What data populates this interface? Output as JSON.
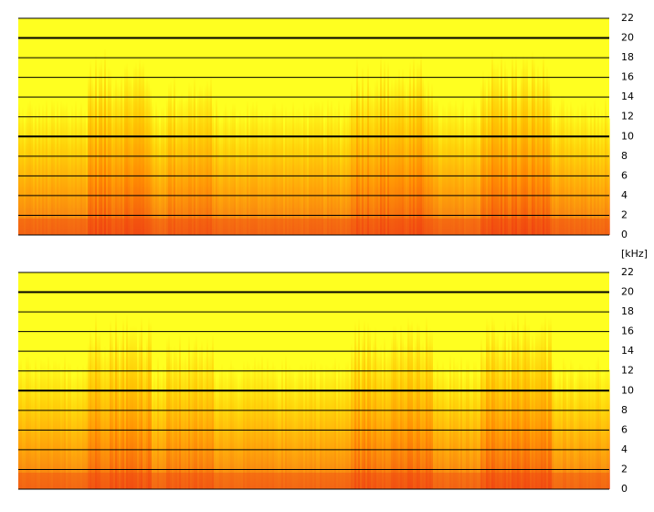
{
  "chart_data": [
    {
      "type": "spectrogram",
      "ylim": [
        0,
        22
      ],
      "yticks": [
        0,
        2,
        4,
        6,
        8,
        10,
        12,
        14,
        16,
        18,
        20,
        22
      ],
      "grid": true,
      "grid_color": "#000000",
      "colormap": [
        "#ffff20",
        "#ffc000",
        "#ff8000",
        "#f04010"
      ]
    },
    {
      "type": "spectrogram",
      "ylabel": "[kHz]",
      "ylim": [
        0,
        22
      ],
      "yticks": [
        0,
        2,
        4,
        6,
        8,
        10,
        12,
        14,
        16,
        18,
        20,
        22
      ],
      "grid": true,
      "grid_color": "#000000",
      "colormap": [
        "#ffff20",
        "#ffc000",
        "#ff8000",
        "#f04010"
      ]
    }
  ]
}
